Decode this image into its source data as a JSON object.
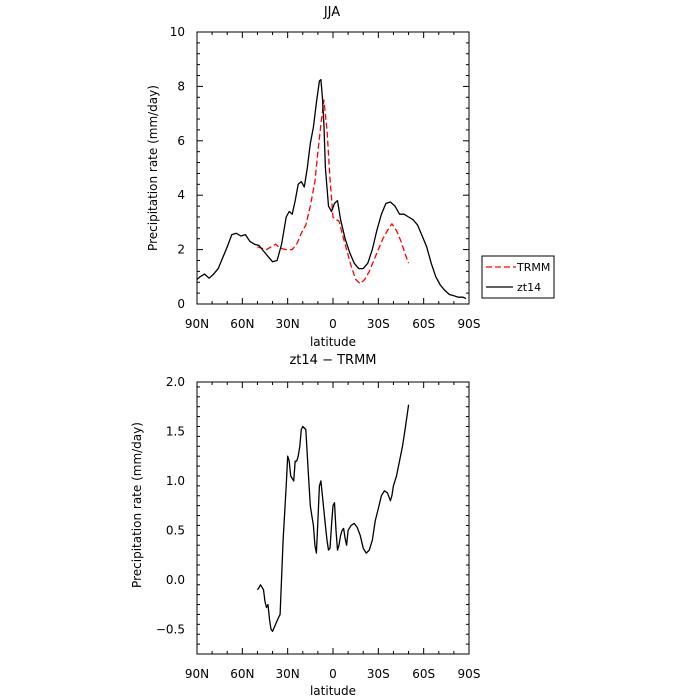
{
  "chart_data": [
    {
      "type": "line",
      "title": "JJA",
      "xlabel": "latitude",
      "ylabel": "Precipitation rate (mm/day)",
      "xlim": [
        90,
        -90
      ],
      "ylim": [
        0,
        10
      ],
      "xticks": [
        90,
        60,
        30,
        0,
        -30,
        -60,
        -90
      ],
      "xtick_labels": [
        "90N",
        "60N",
        "30N",
        "0",
        "30S",
        "60S",
        "90S"
      ],
      "yticks": [
        0,
        2,
        4,
        6,
        8,
        10
      ],
      "ytick_labels": [
        "0",
        "2",
        "4",
        "6",
        "8",
        "10"
      ],
      "legend": {
        "placement": "right",
        "entries": [
          "TRMM",
          "zt14"
        ]
      },
      "series": [
        {
          "name": "TRMM",
          "color": "#ff0000",
          "style": "dashed",
          "x": [
            50,
            47,
            44,
            41,
            38,
            35,
            31,
            27,
            24,
            21,
            18,
            15,
            12,
            10,
            8,
            6,
            4,
            2,
            0,
            -2,
            -4,
            -6,
            -8,
            -10,
            -12,
            -15,
            -18,
            -21,
            -24,
            -27,
            -30,
            -33,
            -36,
            -39,
            -42,
            -45,
            -48,
            -50
          ],
          "y": [
            2.1,
            2.05,
            2.0,
            2.1,
            2.2,
            2.05,
            2.0,
            2.0,
            2.2,
            2.6,
            2.9,
            3.6,
            4.5,
            5.6,
            6.6,
            7.5,
            6.4,
            4.6,
            3.2,
            3.1,
            3.05,
            2.6,
            2.2,
            1.8,
            1.4,
            0.9,
            0.75,
            0.9,
            1.2,
            1.6,
            2.0,
            2.4,
            2.7,
            2.95,
            2.7,
            2.3,
            1.8,
            1.5
          ]
        },
        {
          "name": "zt14",
          "color": "#000000",
          "style": "solid",
          "x": [
            90,
            88,
            85,
            82,
            79,
            76,
            73,
            70,
            67,
            64,
            61,
            58,
            55,
            52,
            49,
            46,
            43,
            40,
            37,
            34,
            31,
            29,
            27,
            25,
            23,
            21,
            19,
            17,
            15,
            13,
            11,
            9,
            8,
            7,
            6,
            5,
            3,
            1,
            -1,
            -3,
            -5,
            -8,
            -11,
            -14,
            -17,
            -20,
            -23,
            -26,
            -29,
            -32,
            -35,
            -38,
            -41,
            -44,
            -47,
            -50,
            -53,
            -56,
            -59,
            -62,
            -65,
            -68,
            -71,
            -74,
            -77,
            -80,
            -83,
            -86,
            -88
          ],
          "y": [
            0.9,
            1.0,
            1.1,
            0.95,
            1.1,
            1.3,
            1.7,
            2.1,
            2.55,
            2.6,
            2.5,
            2.55,
            2.3,
            2.2,
            2.15,
            1.95,
            1.75,
            1.55,
            1.6,
            2.2,
            3.2,
            3.4,
            3.3,
            3.8,
            4.4,
            4.5,
            4.3,
            5.0,
            5.9,
            6.5,
            7.4,
            8.2,
            8.25,
            7.6,
            6.6,
            5.0,
            3.6,
            3.4,
            3.7,
            3.8,
            3.1,
            2.4,
            1.9,
            1.5,
            1.3,
            1.3,
            1.5,
            2.0,
            2.7,
            3.3,
            3.7,
            3.75,
            3.6,
            3.3,
            3.3,
            3.2,
            3.1,
            2.9,
            2.5,
            2.1,
            1.5,
            1.0,
            0.7,
            0.5,
            0.35,
            0.3,
            0.25,
            0.25,
            0.2
          ]
        }
      ]
    },
    {
      "type": "line",
      "title": "zt14 − TRMM",
      "xlabel": "latitude",
      "ylabel": "Precipitation rate (mm/day)",
      "xlim": [
        90,
        -90
      ],
      "ylim": [
        -0.75,
        2.0
      ],
      "xticks": [
        90,
        60,
        30,
        0,
        -30,
        -60,
        -90
      ],
      "xtick_labels": [
        "90N",
        "60N",
        "30N",
        "0",
        "30S",
        "60S",
        "90S"
      ],
      "yticks": [
        -0.5,
        0.0,
        0.5,
        1.0,
        1.5,
        2.0
      ],
      "ytick_labels": [
        "−0.5",
        "0.0",
        "0.5",
        "1.0",
        "1.5",
        "2.0"
      ],
      "series": [
        {
          "color": "#000000",
          "style": "solid",
          "x": [
            50,
            49,
            48,
            46,
            45,
            44,
            43,
            42,
            41,
            40,
            38,
            36,
            35,
            33,
            31,
            30,
            29,
            28,
            26,
            25,
            24,
            23,
            22,
            21,
            20,
            18,
            16,
            15,
            14,
            13,
            12,
            11,
            10,
            9,
            8,
            7,
            5,
            4,
            3,
            2,
            1,
            0,
            -1,
            -2,
            -3,
            -4,
            -5,
            -6,
            -7,
            -8,
            -9,
            -10,
            -12,
            -14,
            -16,
            -18,
            -20,
            -22,
            -24,
            -26,
            -28,
            -30,
            -32,
            -34,
            -36,
            -38,
            -39,
            -40,
            -42,
            -44,
            -46,
            -48,
            -50
          ],
          "y": [
            -0.1,
            -0.08,
            -0.05,
            -0.1,
            -0.22,
            -0.28,
            -0.25,
            -0.4,
            -0.5,
            -0.52,
            -0.45,
            -0.38,
            -0.35,
            0.4,
            0.95,
            1.25,
            1.2,
            1.05,
            1.0,
            1.2,
            1.2,
            1.25,
            1.35,
            1.52,
            1.55,
            1.52,
            1.0,
            0.75,
            0.65,
            0.55,
            0.35,
            0.27,
            0.6,
            0.95,
            1.0,
            0.85,
            0.55,
            0.4,
            0.3,
            0.32,
            0.55,
            0.75,
            0.78,
            0.5,
            0.3,
            0.35,
            0.45,
            0.5,
            0.52,
            0.42,
            0.35,
            0.5,
            0.55,
            0.57,
            0.53,
            0.45,
            0.32,
            0.27,
            0.3,
            0.4,
            0.6,
            0.72,
            0.85,
            0.9,
            0.88,
            0.8,
            0.85,
            0.95,
            1.05,
            1.2,
            1.35,
            1.55,
            1.77
          ]
        }
      ]
    }
  ]
}
